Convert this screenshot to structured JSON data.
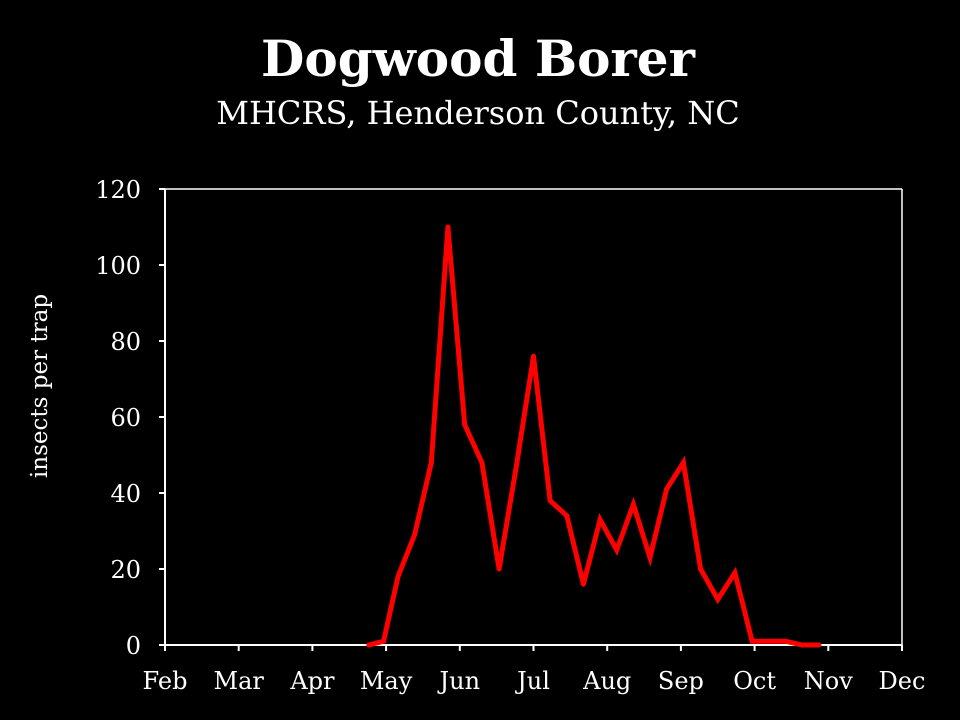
{
  "colors": {
    "background": "#000000",
    "foreground": "#ffffff",
    "series": "#ff0000"
  },
  "chart_data": {
    "type": "line",
    "title": "Dogwood Borer",
    "subtitle": "MHCRS, Henderson County, NC",
    "ylabel": "insects per trap",
    "xlabel": "",
    "x_tick_labels": [
      "Feb",
      "Mar",
      "Apr",
      "May",
      "Jun",
      "Jul",
      "Aug",
      "Sep",
      "Oct",
      "Nov",
      "Dec"
    ],
    "y_ticks": [
      0,
      20,
      40,
      60,
      80,
      100,
      120
    ],
    "ylim": [
      0,
      120
    ],
    "grid": false,
    "legend": "none",
    "series": [
      {
        "color": "#ff0000",
        "points": [
          {
            "x": "Apr 24",
            "y": 0
          },
          {
            "x": "Apr 30",
            "y": 1
          },
          {
            "x": "May 6",
            "y": 18
          },
          {
            "x": "May 13",
            "y": 29
          },
          {
            "x": "May 20",
            "y": 48
          },
          {
            "x": "May 27",
            "y": 110
          },
          {
            "x": "Jun 3",
            "y": 58
          },
          {
            "x": "Jun 10",
            "y": 48
          },
          {
            "x": "Jun 17",
            "y": 20
          },
          {
            "x": "Jun 24",
            "y": 47
          },
          {
            "x": "Jul 1",
            "y": 76
          },
          {
            "x": "Jul 8",
            "y": 38
          },
          {
            "x": "Jul 15",
            "y": 34
          },
          {
            "x": "Jul 22",
            "y": 16
          },
          {
            "x": "Jul 29",
            "y": 33
          },
          {
            "x": "Aug 5",
            "y": 25
          },
          {
            "x": "Aug 12",
            "y": 37
          },
          {
            "x": "Aug 19",
            "y": 23
          },
          {
            "x": "Aug 26",
            "y": 41
          },
          {
            "x": "Sep 2",
            "y": 48
          },
          {
            "x": "Sep 9",
            "y": 20
          },
          {
            "x": "Sep 16",
            "y": 12
          },
          {
            "x": "Sep 23",
            "y": 19
          },
          {
            "x": "Sep 30",
            "y": 1
          },
          {
            "x": "Oct 7",
            "y": 1
          },
          {
            "x": "Oct 14",
            "y": 1
          },
          {
            "x": "Oct 21",
            "y": 0
          },
          {
            "x": "Oct 28",
            "y": 0
          }
        ]
      }
    ]
  }
}
